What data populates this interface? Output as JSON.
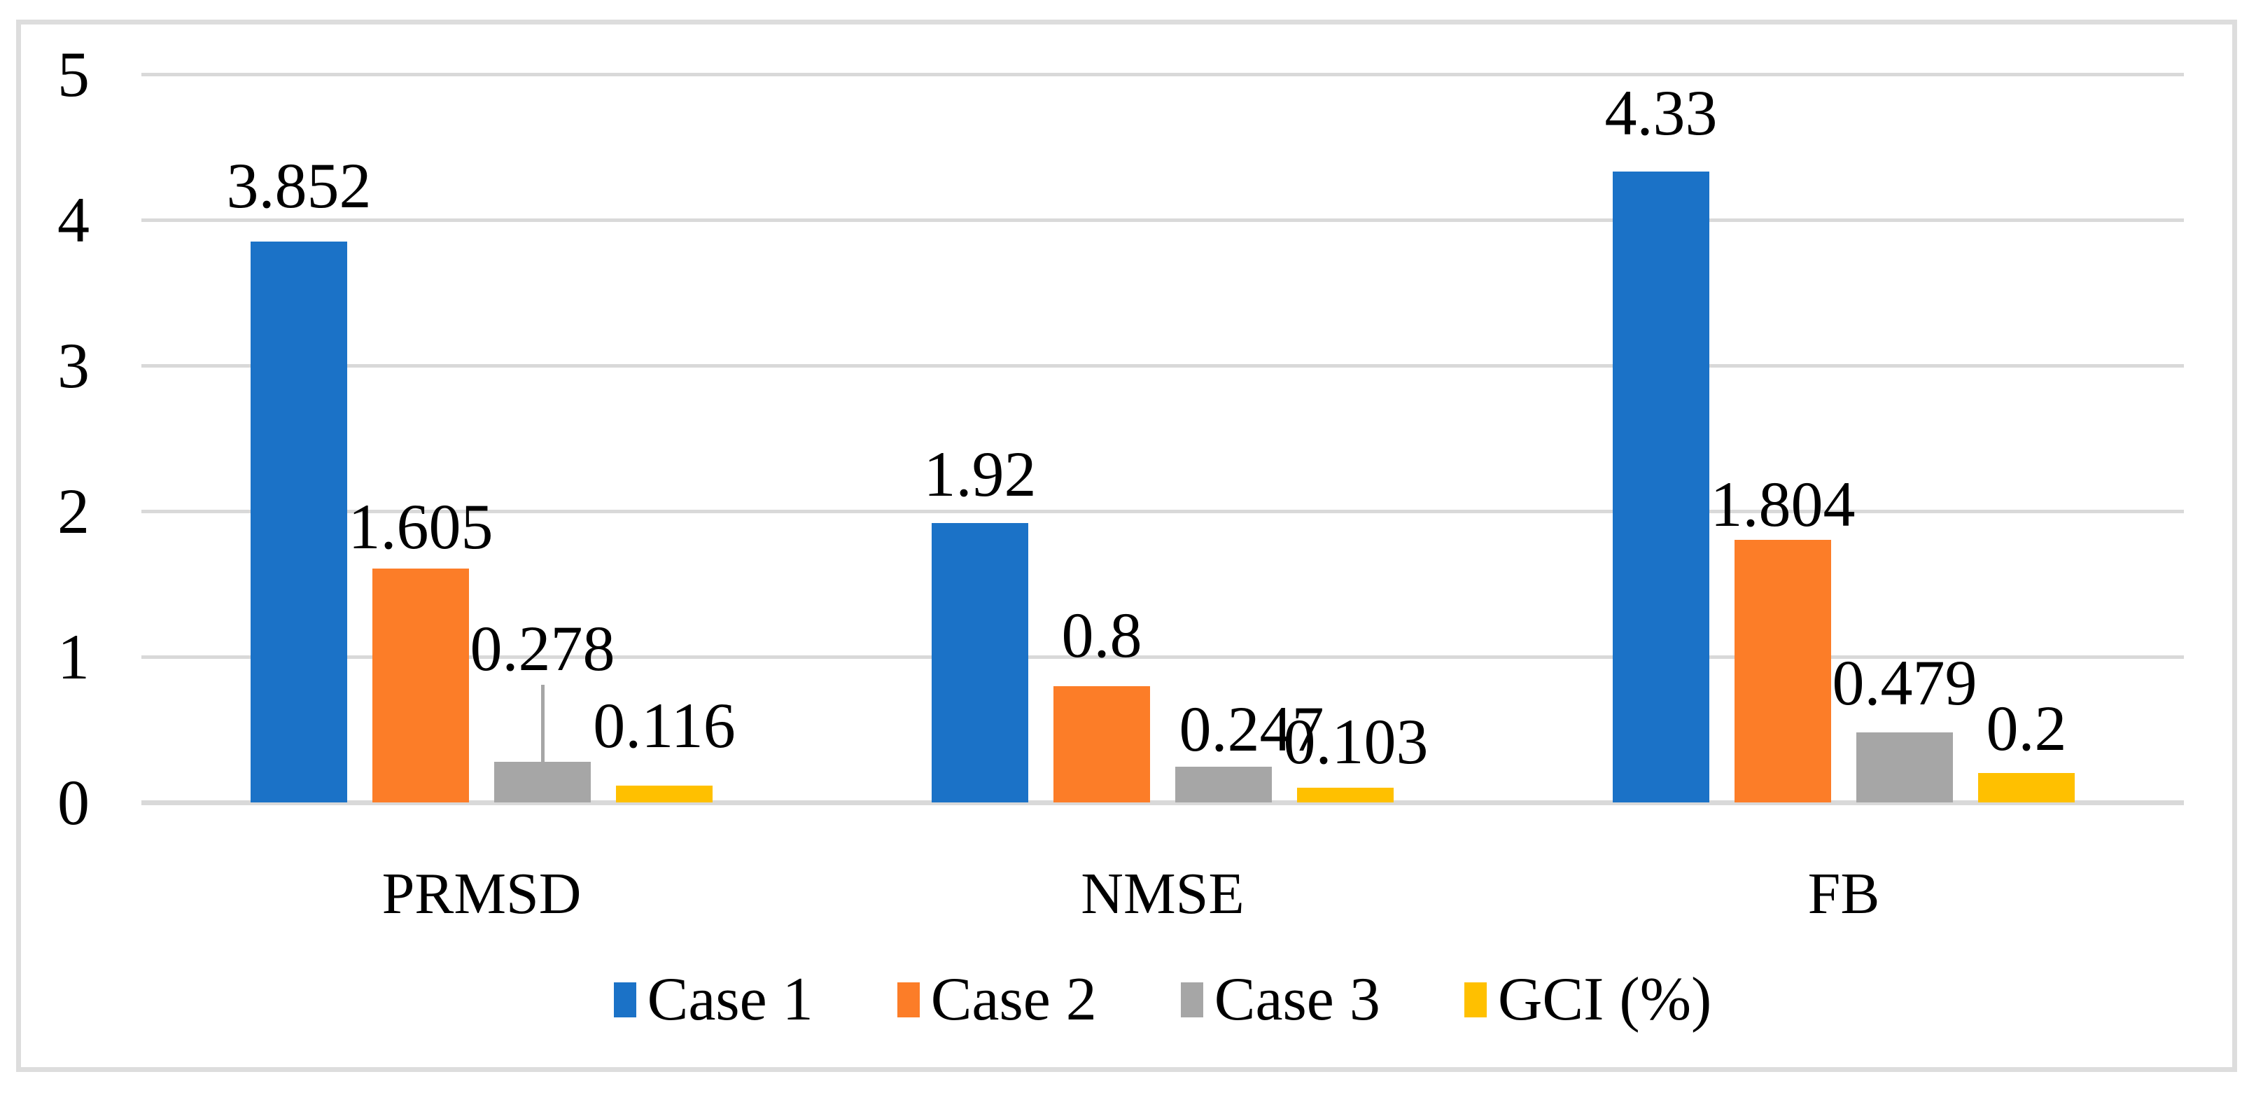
{
  "figure": {
    "background": "#ffffff",
    "border_color": "#dddddd",
    "gridline_color": "#d9d9d9",
    "axis_line_color": "#d9d9d9",
    "text_color": "#000000",
    "leader_line_color": "#a6a6a6"
  },
  "chart_data": {
    "type": "bar",
    "title": "",
    "xlabel": "",
    "ylabel": "",
    "categories": [
      "PRMSD",
      "NMSE",
      "FB"
    ],
    "series": [
      {
        "name": "Case 1",
        "color": "#1b72c7",
        "values": [
          3.852,
          1.92,
          4.33
        ],
        "labels": [
          "3.852",
          "1.92",
          "4.33"
        ]
      },
      {
        "name": "Case 2",
        "color": "#fc7d28",
        "values": [
          1.605,
          0.8,
          1.804
        ],
        "labels": [
          "1.605",
          "0.8",
          "1.804"
        ]
      },
      {
        "name": "Case 3",
        "color": "#a6a6a6",
        "values": [
          0.278,
          0.247,
          0.479
        ],
        "labels": [
          "0.278",
          "0.247",
          "0.479"
        ]
      },
      {
        "name": "GCI (%)",
        "color": "#ffc000",
        "values": [
          0.116,
          0.103,
          0.2
        ],
        "labels": [
          "0.116",
          "0.103",
          "0.2"
        ]
      }
    ],
    "ylim": [
      0,
      5
    ],
    "yticks": [
      0,
      1,
      2,
      3,
      4,
      5
    ],
    "grid": "horizontal",
    "legend_position": "bottom"
  }
}
